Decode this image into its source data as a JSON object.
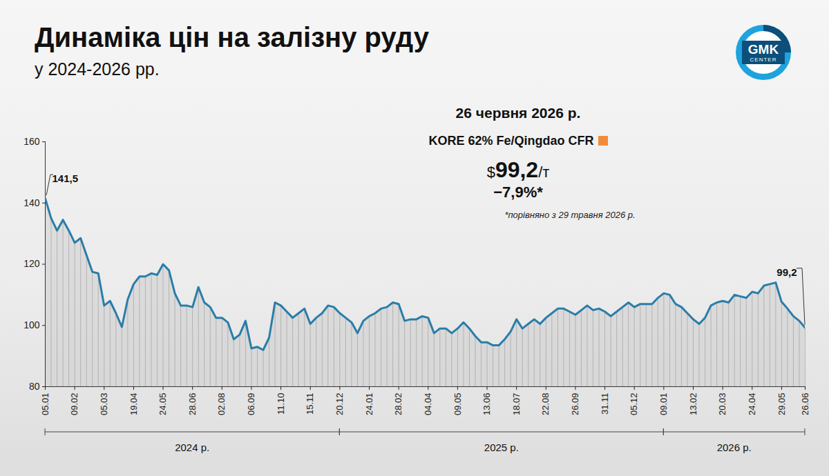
{
  "chart_data": {
    "type": "line",
    "title": "Динаміка цін на залізну руду",
    "subtitle": "у 2024-2026 рр.",
    "logo": {
      "text": "GMK",
      "subtext": "CENTER"
    },
    "callout": {
      "date": "26 червня 2026 р.",
      "series_label": "KORE 62% Fe/Qingdao CFR",
      "marker_color": "#f28c3a",
      "price_prefix": "$",
      "price": "99,2",
      "price_unit": "/т",
      "change": "−7,9%*",
      "footnote": "*порівняно з 29 травня 2026 р."
    },
    "categories": [
      "05.01",
      null,
      null,
      null,
      null,
      "09.02",
      null,
      null,
      null,
      null,
      "05.03",
      null,
      null,
      null,
      null,
      "19.04",
      null,
      null,
      null,
      null,
      "24.05",
      null,
      null,
      null,
      null,
      "28.06",
      null,
      null,
      null,
      null,
      "02.08",
      null,
      null,
      null,
      null,
      "06.09",
      null,
      null,
      null,
      null,
      "11.10",
      null,
      null,
      null,
      null,
      "15.11",
      null,
      null,
      null,
      null,
      "20.12",
      null,
      null,
      null,
      null,
      "24.01",
      null,
      null,
      null,
      null,
      "28.02",
      null,
      null,
      null,
      null,
      "04.04",
      null,
      null,
      null,
      null,
      "09.05",
      null,
      null,
      null,
      null,
      "13.06",
      null,
      null,
      null,
      null,
      "18.07",
      null,
      null,
      null,
      null,
      "22.08",
      null,
      null,
      null,
      null,
      "26.09",
      null,
      null,
      null,
      null,
      "31.11",
      null,
      null,
      null,
      null,
      "05.12",
      null,
      null,
      null,
      null,
      "09.01",
      null,
      null,
      null,
      null,
      "13.02",
      null,
      null,
      null,
      null,
      "20.03",
      null,
      null,
      null,
      null,
      "24.04",
      null,
      null,
      null,
      null,
      "29.05",
      null,
      null,
      null,
      "26.06"
    ],
    "values": [
      141.5,
      135,
      131,
      134.5,
      131,
      127,
      128.5,
      123,
      117.5,
      117,
      106.5,
      108,
      104,
      99.5,
      108.5,
      113.5,
      116,
      116,
      117,
      116.5,
      120,
      118,
      110.5,
      106.5,
      106.5,
      106,
      112.5,
      107.5,
      106,
      102.5,
      102.5,
      101,
      95.5,
      97,
      101.5,
      92.5,
      93,
      92,
      96,
      107.5,
      106.5,
      104.5,
      102.5,
      104,
      105.5,
      100.5,
      102.5,
      104,
      106.5,
      106,
      104,
      102.5,
      101,
      97.5,
      101.5,
      103,
      104,
      105.5,
      106,
      107.5,
      107,
      101.5,
      102,
      102,
      103,
      102.5,
      97.5,
      99,
      99,
      97.5,
      99,
      101,
      99,
      96.5,
      94.5,
      94.5,
      93.5,
      93.5,
      95.5,
      98,
      102,
      99,
      100.5,
      102,
      100.5,
      102.5,
      104,
      105.5,
      105.5,
      104.5,
      103.5,
      105,
      106.5,
      105,
      105.5,
      104.5,
      103,
      104.5,
      106,
      107.5,
      106,
      107,
      107,
      107,
      109,
      110.5,
      110,
      107,
      106,
      104,
      102,
      100.5,
      102.5,
      106.5,
      107.5,
      108,
      107.5,
      110,
      109.5,
      109,
      111,
      110.5,
      113,
      113.5,
      114,
      107.7,
      105.5,
      103,
      101.5,
      99.2
    ],
    "color": "#2a7da8",
    "ylim": [
      80,
      160
    ],
    "yticks": [
      80,
      100,
      120,
      140,
      160
    ],
    "grid": false,
    "annotations": [
      {
        "x": "05.01",
        "label": "141,5"
      },
      {
        "x": "26.06",
        "label": "99,2"
      }
    ],
    "groups": [
      {
        "label": "2024 р.",
        "from": "05.01",
        "to": "20.12"
      },
      {
        "label": "2025 р.",
        "from": "20.12",
        "to": "09.01"
      },
      {
        "label": "2026 р.",
        "from": "09.01",
        "to": "26.06"
      }
    ]
  }
}
